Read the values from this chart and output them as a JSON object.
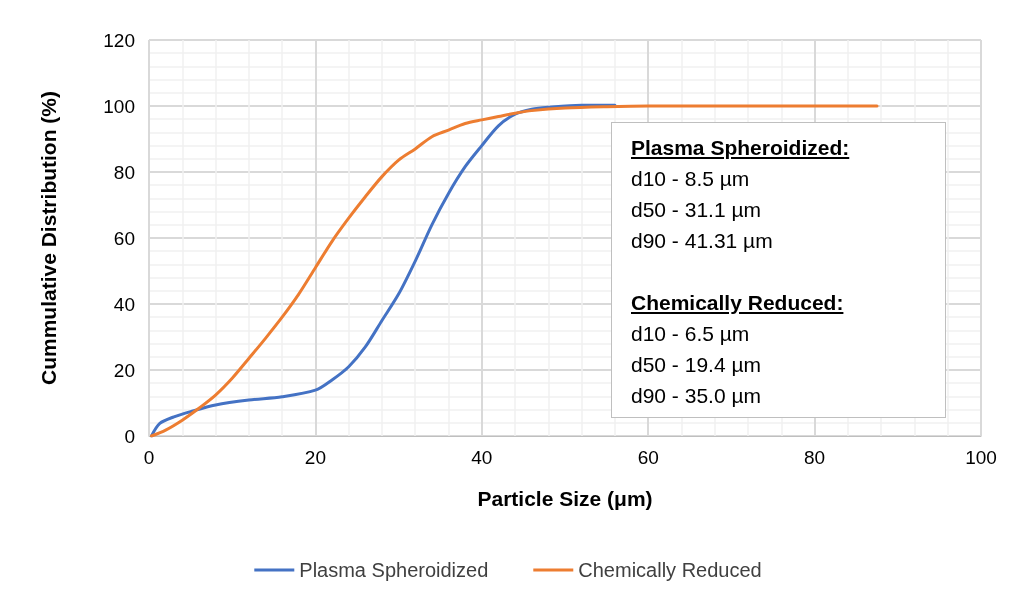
{
  "chart_data": {
    "type": "line",
    "xlabel": "Particle Size (μm)",
    "ylabel": "Cummulative Distribution (%)",
    "xlim": [
      0,
      100
    ],
    "xticks": [
      0,
      20,
      40,
      60,
      80,
      100
    ],
    "ylim": [
      0,
      120
    ],
    "yticks": [
      0,
      20,
      40,
      60,
      80,
      100,
      120
    ],
    "grid": true,
    "legend": "bottom",
    "marker": "none",
    "line_style": "solid",
    "series": [
      {
        "name": "Plasma Spheroidized",
        "color": "#4472c4",
        "x": [
          0.3,
          1.3,
          3,
          5,
          8,
          12,
          16,
          20,
          22,
          24,
          26,
          28,
          30,
          32,
          34,
          36,
          38,
          40,
          42,
          44,
          46,
          48,
          52,
          56
        ],
        "values": [
          0,
          3.8,
          5.8,
          7.4,
          9.4,
          10.9,
          11.9,
          13.9,
          17,
          21,
          27,
          35,
          43,
          53,
          64,
          73.5,
          81.6,
          88,
          94,
          97.5,
          99,
          99.6,
          100.2,
          100.2
        ]
      },
      {
        "name": "Chemically Reduced",
        "color": "#ed7d31",
        "x": [
          0.3,
          2,
          4,
          6,
          8,
          10,
          12,
          14,
          16,
          18,
          20,
          22,
          24,
          26,
          28,
          30,
          32,
          34,
          36,
          38,
          40,
          42,
          44,
          46,
          50,
          55,
          60,
          87.5
        ],
        "values": [
          0,
          1.8,
          4.8,
          8.4,
          12.4,
          17.5,
          23.5,
          29.6,
          36,
          43,
          51,
          59,
          66,
          72.5,
          78.6,
          83.6,
          87,
          90.7,
          92.7,
          94.7,
          95.8,
          96.8,
          97.8,
          98.6,
          99.4,
          99.8,
          100,
          100
        ]
      }
    ],
    "annotations": [
      "Plasma Spheroidized:",
      "d10 - 8.5 µm",
      "d50 - 31.1 µm",
      "d90 - 41.31 µm",
      "Chemically Reduced:",
      "d10 - 6.5 µm",
      "d50 - 19.4 µm",
      "d90 - 35.0 µm"
    ]
  }
}
